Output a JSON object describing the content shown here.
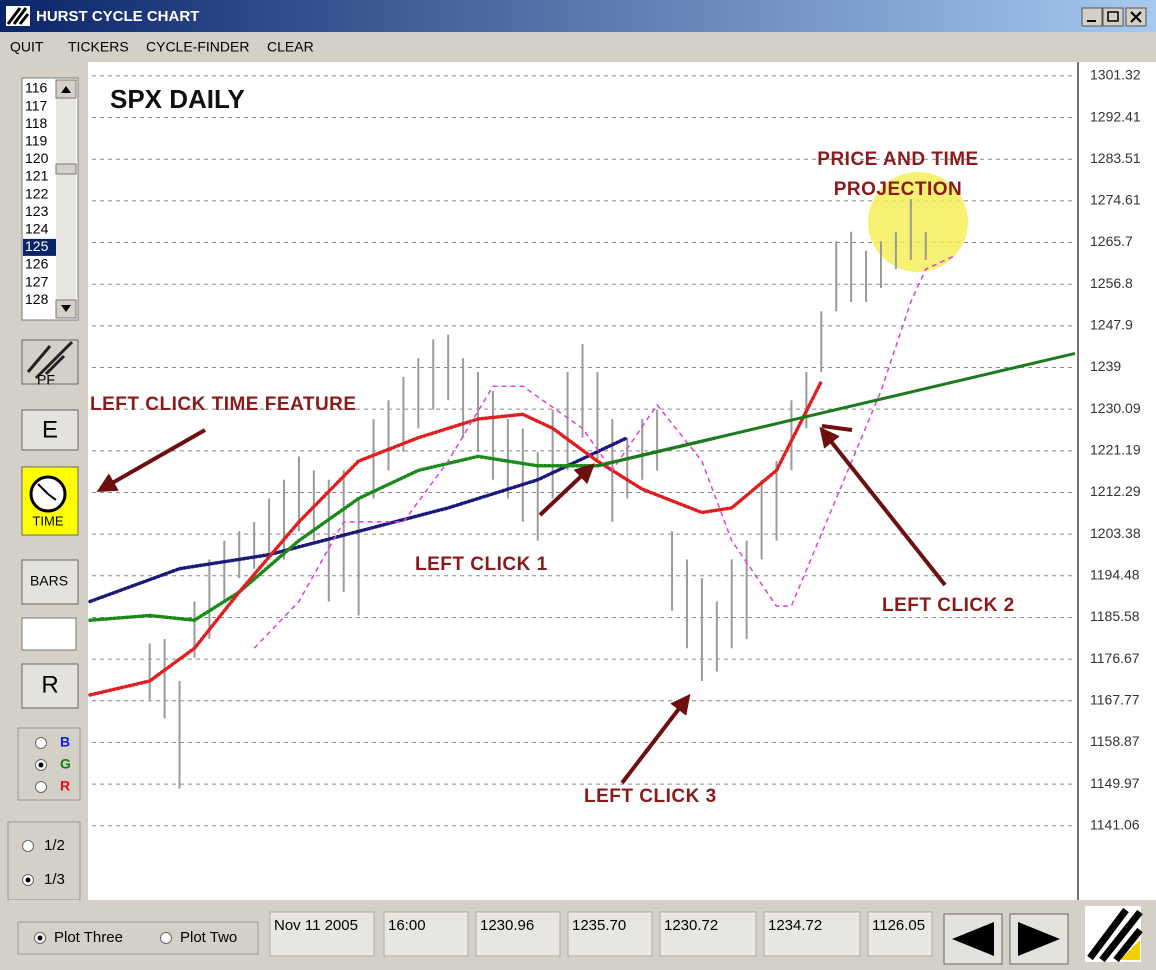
{
  "window": {
    "title": "HURST CYCLE CHART"
  },
  "menu": [
    "QUIT",
    "TICKERS",
    "CYCLE-FINDER",
    "CLEAR"
  ],
  "list": {
    "items": [
      116,
      117,
      118,
      119,
      120,
      121,
      122,
      123,
      124,
      125,
      126,
      127,
      128
    ],
    "selected": 9
  },
  "buttons": {
    "pf": "PF",
    "e": "E",
    "time": "TIME",
    "bars": "BARS",
    "r": "R"
  },
  "color_radios": {
    "options": [
      {
        "label": "B",
        "color": "#1020e0"
      },
      {
        "label": "G",
        "color": "#108010"
      },
      {
        "label": "R",
        "color": "#e01010"
      }
    ],
    "checked": 1
  },
  "fraction_radios": {
    "options": [
      "1/2",
      "1/3"
    ],
    "checked": 1
  },
  "plot_radios": {
    "options": [
      "Plot Three",
      "Plot Two"
    ],
    "checked": 0
  },
  "status": [
    "Nov 11 2005",
    "16:00",
    "1230.96",
    "1235.70",
    "1230.72",
    "1234.72",
    "1126.05"
  ],
  "chart_data": {
    "type": "price-bars",
    "title": "SPX DAILY",
    "annotations": {
      "projection": [
        "PRICE AND TIME",
        "PROJECTION"
      ],
      "time_feature": "LEFT CLICK TIME FEATURE",
      "click1": "LEFT CLICK 1",
      "click2": "LEFT CLICK 2",
      "click3": "LEFT CLICK 3"
    },
    "xlim": [
      -4,
      62
    ],
    "ylim": [
      1125.2,
      1303
    ],
    "yticks": [
      1301.32,
      1292.41,
      1283.51,
      1274.61,
      1265.7,
      1256.8,
      1247.9,
      1239,
      1230.09,
      1221.19,
      1212.29,
      1203.38,
      1194.48,
      1185.58,
      1176.67,
      1167.77,
      1158.87,
      1149.97,
      1141.06
    ],
    "grid": true,
    "bars": {
      "color": "#9a9a9a",
      "x": [
        0,
        1,
        2,
        3,
        4,
        5,
        6,
        7,
        8,
        9,
        10,
        11,
        12,
        13,
        14,
        15,
        16,
        17,
        18,
        19,
        20,
        21,
        22,
        23,
        24,
        25,
        26,
        27,
        28,
        29,
        30,
        31,
        32,
        33,
        34,
        35,
        36,
        37,
        38,
        39,
        40,
        41,
        42,
        43,
        44,
        45,
        46,
        47,
        48,
        49,
        50,
        51,
        52
      ],
      "high": [
        1180,
        1181,
        1172,
        1189,
        1198,
        1202,
        1204,
        1206,
        1211,
        1215,
        1220,
        1217,
        1215,
        1217,
        1211,
        1228,
        1232,
        1237,
        1241,
        1245,
        1246,
        1241,
        1238,
        1234,
        1228,
        1226,
        1221,
        1230,
        1238,
        1244,
        1238,
        1228,
        1224,
        1228,
        1230,
        1204,
        1198,
        1194,
        1189,
        1198,
        1202,
        1215,
        1219,
        1232,
        1238,
        1251,
        1266,
        1268,
        1264,
        1266,
        1268,
        1275,
        1268
      ],
      "low": [
        1168,
        1164,
        1149,
        1177,
        1181,
        1189,
        1194,
        1196,
        1198,
        1198,
        1204,
        1202,
        1189,
        1191,
        1186,
        1211,
        1217,
        1221,
        1226,
        1230,
        1232,
        1224,
        1221,
        1215,
        1211,
        1206,
        1202,
        1211,
        1217,
        1224,
        1219,
        1206,
        1211,
        1215,
        1217,
        1187,
        1179,
        1172,
        1174,
        1179,
        1181,
        1198,
        1202,
        1217,
        1226,
        1238,
        1251,
        1253,
        1253,
        1256,
        1260,
        1262,
        1262
      ]
    },
    "lines": [
      {
        "color": "#1a1a7a",
        "style": "dotted",
        "x": [
          -4,
          2,
          8,
          14,
          20,
          26,
          32
        ],
        "values": [
          1189,
          1196,
          1199,
          1204,
          1209,
          1215,
          1224
        ]
      },
      {
        "color": "#1a8a1a",
        "style": "dotted",
        "x": [
          -4,
          0,
          3,
          6,
          10,
          14,
          18,
          22,
          26,
          30,
          34,
          38
        ],
        "values": [
          1185,
          1186,
          1185,
          1191,
          1202,
          1211,
          1217,
          1220,
          1218,
          1218,
          1221,
          1224
        ]
      },
      {
        "color": "#e02020",
        "style": "dotted",
        "x": [
          -4,
          0,
          3,
          6,
          10,
          14,
          18,
          22,
          25,
          27,
          30,
          33,
          37,
          39,
          42,
          45
        ],
        "values": [
          1169,
          1172,
          1179,
          1191,
          1206,
          1219,
          1224,
          1228,
          1229,
          1226,
          1219,
          1213,
          1208,
          1209,
          1217,
          1236
        ]
      },
      {
        "color": "#e040e0",
        "style": "dashed",
        "x": [
          7,
          10,
          13,
          17,
          20,
          23,
          25,
          29,
          31,
          34,
          37,
          39,
          42,
          43,
          46,
          49,
          51,
          52,
          54
        ],
        "values": [
          1179,
          1189,
          1206,
          1206,
          1219,
          1235,
          1235,
          1226,
          1217,
          1231,
          1219,
          1202,
          1188,
          1188,
          1211,
          1234,
          1253,
          1260,
          1263
        ]
      },
      {
        "color": "#1f7a1f",
        "style": "solid",
        "x": [
          30,
          62
        ],
        "values": [
          1218,
          1242
        ]
      }
    ]
  }
}
